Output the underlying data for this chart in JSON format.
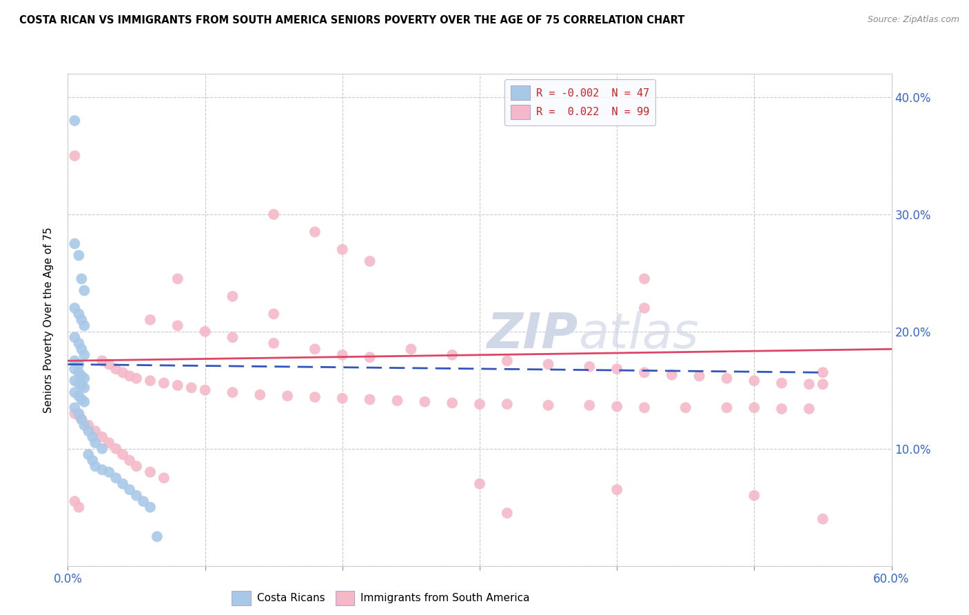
{
  "title": "COSTA RICAN VS IMMIGRANTS FROM SOUTH AMERICA SENIORS POVERTY OVER THE AGE OF 75 CORRELATION CHART",
  "source": "Source: ZipAtlas.com",
  "ylabel": "Seniors Poverty Over the Age of 75",
  "xlim": [
    0.0,
    0.6
  ],
  "ylim": [
    0.0,
    0.42
  ],
  "blue_R": -0.002,
  "blue_N": 47,
  "pink_R": 0.022,
  "pink_N": 99,
  "blue_color": "#a8c8e8",
  "pink_color": "#f4b8c8",
  "blue_line_color": "#3355bb",
  "pink_line_color": "#dd4466",
  "watermark_color": "#d0d8e8",
  "blue_points": [
    [
      0.005,
      0.38
    ],
    [
      0.005,
      0.275
    ],
    [
      0.008,
      0.265
    ],
    [
      0.01,
      0.245
    ],
    [
      0.012,
      0.235
    ],
    [
      0.005,
      0.22
    ],
    [
      0.008,
      0.215
    ],
    [
      0.01,
      0.21
    ],
    [
      0.012,
      0.205
    ],
    [
      0.005,
      0.195
    ],
    [
      0.008,
      0.19
    ],
    [
      0.01,
      0.185
    ],
    [
      0.012,
      0.18
    ],
    [
      0.005,
      0.175
    ],
    [
      0.008,
      0.172
    ],
    [
      0.005,
      0.168
    ],
    [
      0.008,
      0.165
    ],
    [
      0.01,
      0.162
    ],
    [
      0.012,
      0.16
    ],
    [
      0.005,
      0.158
    ],
    [
      0.008,
      0.156
    ],
    [
      0.01,
      0.154
    ],
    [
      0.012,
      0.152
    ],
    [
      0.005,
      0.148
    ],
    [
      0.008,
      0.145
    ],
    [
      0.01,
      0.142
    ],
    [
      0.012,
      0.14
    ],
    [
      0.005,
      0.135
    ],
    [
      0.008,
      0.13
    ],
    [
      0.01,
      0.125
    ],
    [
      0.012,
      0.12
    ],
    [
      0.015,
      0.115
    ],
    [
      0.018,
      0.11
    ],
    [
      0.02,
      0.105
    ],
    [
      0.025,
      0.1
    ],
    [
      0.015,
      0.095
    ],
    [
      0.018,
      0.09
    ],
    [
      0.02,
      0.085
    ],
    [
      0.025,
      0.082
    ],
    [
      0.03,
      0.08
    ],
    [
      0.035,
      0.075
    ],
    [
      0.04,
      0.07
    ],
    [
      0.045,
      0.065
    ],
    [
      0.05,
      0.06
    ],
    [
      0.055,
      0.055
    ],
    [
      0.06,
      0.05
    ],
    [
      0.065,
      0.025
    ]
  ],
  "pink_points": [
    [
      0.005,
      0.35
    ],
    [
      0.15,
      0.3
    ],
    [
      0.18,
      0.285
    ],
    [
      0.2,
      0.27
    ],
    [
      0.22,
      0.26
    ],
    [
      0.08,
      0.245
    ],
    [
      0.12,
      0.23
    ],
    [
      0.15,
      0.215
    ],
    [
      0.06,
      0.21
    ],
    [
      0.08,
      0.205
    ],
    [
      0.1,
      0.2
    ],
    [
      0.12,
      0.195
    ],
    [
      0.15,
      0.19
    ],
    [
      0.18,
      0.185
    ],
    [
      0.2,
      0.18
    ],
    [
      0.22,
      0.178
    ],
    [
      0.025,
      0.175
    ],
    [
      0.03,
      0.172
    ],
    [
      0.035,
      0.168
    ],
    [
      0.04,
      0.165
    ],
    [
      0.045,
      0.162
    ],
    [
      0.05,
      0.16
    ],
    [
      0.06,
      0.158
    ],
    [
      0.07,
      0.156
    ],
    [
      0.08,
      0.154
    ],
    [
      0.09,
      0.152
    ],
    [
      0.1,
      0.15
    ],
    [
      0.12,
      0.148
    ],
    [
      0.14,
      0.146
    ],
    [
      0.16,
      0.145
    ],
    [
      0.18,
      0.144
    ],
    [
      0.2,
      0.143
    ],
    [
      0.22,
      0.142
    ],
    [
      0.24,
      0.141
    ],
    [
      0.26,
      0.14
    ],
    [
      0.28,
      0.139
    ],
    [
      0.3,
      0.138
    ],
    [
      0.32,
      0.138
    ],
    [
      0.35,
      0.137
    ],
    [
      0.38,
      0.137
    ],
    [
      0.4,
      0.136
    ],
    [
      0.42,
      0.135
    ],
    [
      0.45,
      0.135
    ],
    [
      0.48,
      0.135
    ],
    [
      0.5,
      0.135
    ],
    [
      0.52,
      0.134
    ],
    [
      0.54,
      0.134
    ],
    [
      0.005,
      0.13
    ],
    [
      0.008,
      0.128
    ],
    [
      0.01,
      0.125
    ],
    [
      0.015,
      0.12
    ],
    [
      0.02,
      0.115
    ],
    [
      0.025,
      0.11
    ],
    [
      0.03,
      0.105
    ],
    [
      0.035,
      0.1
    ],
    [
      0.04,
      0.095
    ],
    [
      0.045,
      0.09
    ],
    [
      0.05,
      0.085
    ],
    [
      0.06,
      0.08
    ],
    [
      0.07,
      0.075
    ],
    [
      0.3,
      0.07
    ],
    [
      0.4,
      0.065
    ],
    [
      0.5,
      0.06
    ],
    [
      0.005,
      0.055
    ],
    [
      0.008,
      0.05
    ],
    [
      0.32,
      0.045
    ],
    [
      0.25,
      0.185
    ],
    [
      0.28,
      0.18
    ],
    [
      0.32,
      0.175
    ],
    [
      0.35,
      0.172
    ],
    [
      0.38,
      0.17
    ],
    [
      0.4,
      0.168
    ],
    [
      0.42,
      0.165
    ],
    [
      0.44,
      0.163
    ],
    [
      0.46,
      0.162
    ],
    [
      0.48,
      0.16
    ],
    [
      0.5,
      0.158
    ],
    [
      0.52,
      0.156
    ],
    [
      0.54,
      0.155
    ],
    [
      0.55,
      0.165
    ],
    [
      0.55,
      0.155
    ],
    [
      0.42,
      0.245
    ],
    [
      0.42,
      0.22
    ],
    [
      0.55,
      0.04
    ]
  ],
  "blue_line_x": [
    0.0,
    0.55
  ],
  "blue_line_y": [
    0.172,
    0.165
  ],
  "pink_line_x": [
    0.0,
    0.6
  ],
  "pink_line_y": [
    0.175,
    0.185
  ]
}
